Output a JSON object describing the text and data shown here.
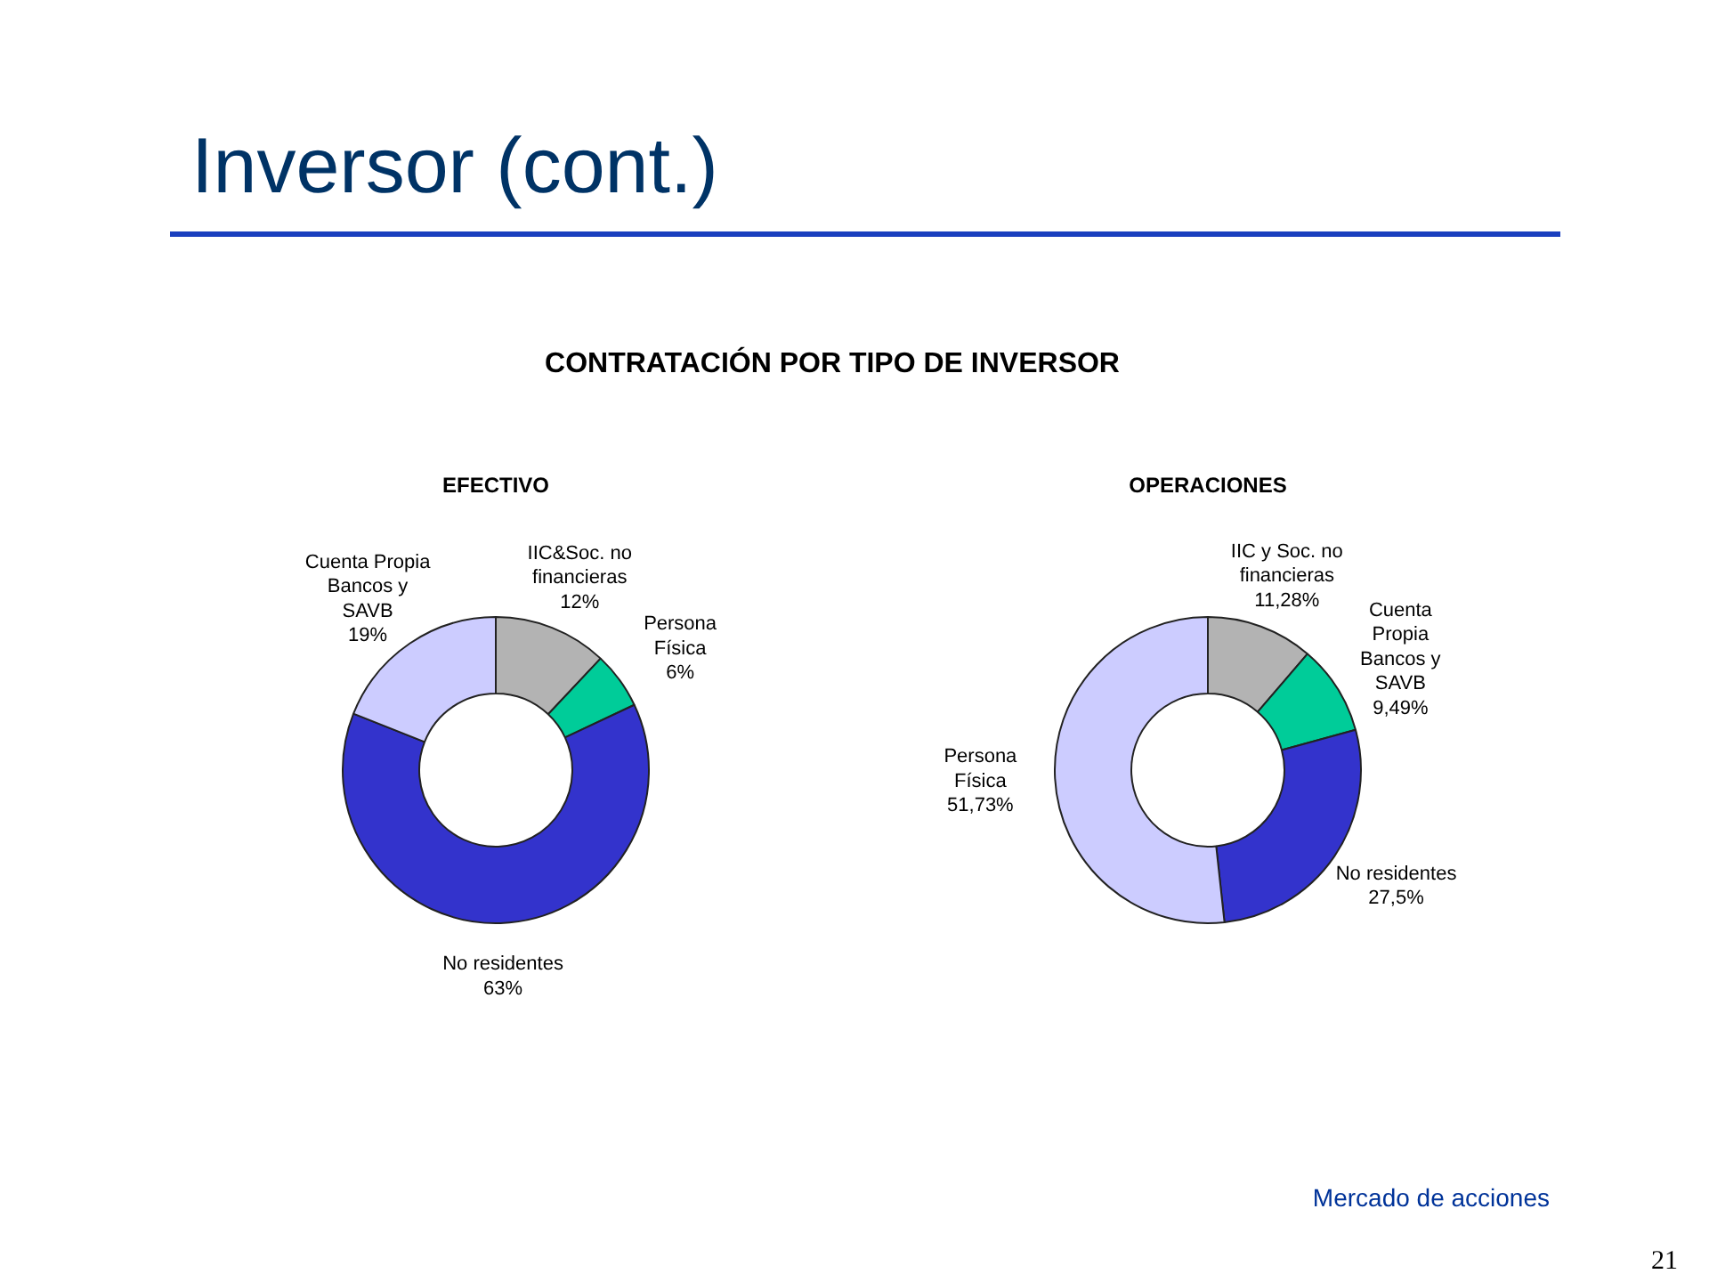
{
  "chart_data": [
    {
      "type": "donut",
      "title": "EFECTIVO",
      "categories": [
        "IIC&Soc. no\nfinancieras",
        "Persona\nFísica",
        "No residentes",
        "Cuenta Propia\nBancos y\nSAVB"
      ],
      "values": [
        12,
        6,
        63,
        19
      ],
      "value_labels": [
        "12%",
        "6%",
        "63%",
        "19%"
      ],
      "colors": [
        "#b3b3b3",
        "#00cc99",
        "#3333cc",
        "#ccccff"
      ],
      "annotations": [
        "Inversor (cont.)",
        "CONTRATACIÓN POR TIPO DE INVERSOR",
        "Mercado de acciones",
        "21"
      ]
    },
    {
      "type": "donut",
      "title": "OPERACIONES",
      "categories": [
        "IIC y Soc. no\nfinancieras",
        "Cuenta\nPropia\nBancos y\nSAVB",
        "No residentes",
        "Persona\nFísica"
      ],
      "values": [
        11.28,
        9.49,
        27.5,
        51.73
      ],
      "value_labels": [
        "11,28%",
        "9,49%",
        "27,5%",
        "51,73%"
      ],
      "colors": [
        "#b3b3b3",
        "#00cc99",
        "#3333cc",
        "#ccccff"
      ]
    }
  ]
}
